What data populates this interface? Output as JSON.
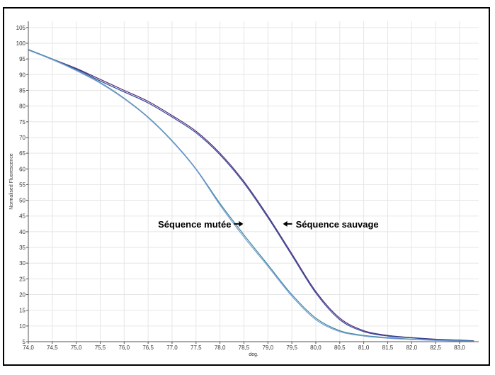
{
  "chart_data": {
    "type": "line",
    "title": "",
    "xlabel": "deg.",
    "ylabel": "Normalised Fluorescence",
    "xlim": [
      74.0,
      83.4
    ],
    "ylim": [
      5,
      107
    ],
    "xticks": [
      74.0,
      74.5,
      75.0,
      75.5,
      76.0,
      76.5,
      77.0,
      77.5,
      78.0,
      78.5,
      79.0,
      79.5,
      80.0,
      80.5,
      81.0,
      81.5,
      82.0,
      82.5,
      83.0
    ],
    "xtick_labels": [
      "74,0",
      "74,5",
      "75,0",
      "75,5",
      "76,0",
      "76,5",
      "77,0",
      "77,5",
      "78,0",
      "78,5",
      "79,0",
      "79,5",
      "80,0",
      "80,5",
      "81,0",
      "81,5",
      "82,0",
      "82,5",
      "83,0"
    ],
    "yticks": [
      5,
      10,
      15,
      20,
      25,
      30,
      35,
      40,
      45,
      50,
      55,
      60,
      65,
      70,
      75,
      80,
      85,
      90,
      95,
      100,
      105
    ],
    "ytick_labels": [
      "5",
      "10",
      "15",
      "20",
      "25",
      "30",
      "35",
      "40",
      "45",
      "50",
      "55",
      "60",
      "65",
      "70",
      "75",
      "80",
      "85",
      "90",
      "95",
      "100",
      "105"
    ],
    "grid": true,
    "series": [
      {
        "color": "#5a2a7a",
        "x": [
          74.0,
          74.5,
          75.0,
          75.5,
          76.0,
          76.5,
          77.0,
          77.5,
          78.0,
          78.5,
          79.0,
          79.5,
          80.0,
          80.5,
          81.0,
          81.5,
          82.0,
          82.5,
          83.0,
          83.3
        ],
        "values": [
          98,
          95,
          92,
          88.5,
          85,
          81.5,
          77,
          72,
          65,
          56,
          45,
          33,
          21,
          12.5,
          8.5,
          7,
          6.3,
          5.8,
          5.5,
          5.3
        ]
      },
      {
        "color": "#2a4a9a",
        "x": [
          74.0,
          74.5,
          75.0,
          75.5,
          76.0,
          76.5,
          77.0,
          77.5,
          78.0,
          78.5,
          79.0,
          79.5,
          80.0,
          80.5,
          81.0,
          81.5,
          82.0,
          82.5,
          83.0,
          83.3
        ],
        "values": [
          98,
          94.8,
          91.8,
          88,
          84.5,
          81,
          76.5,
          71.5,
          64.5,
          55.5,
          44.5,
          32.5,
          20.5,
          12,
          8.2,
          6.8,
          6.2,
          5.7,
          5.4,
          5.2
        ]
      },
      {
        "color": "#3a8a9a",
        "x": [
          74.0,
          74.5,
          75.0,
          75.5,
          76.0,
          76.5,
          77.0,
          77.5,
          78.0,
          78.5,
          79.0,
          79.5,
          80.0,
          80.5,
          81.0,
          81.5,
          82.0,
          82.5,
          83.0,
          83.3
        ],
        "values": [
          98,
          95,
          91.5,
          87.5,
          82.5,
          76.5,
          69,
          60,
          49,
          39,
          29.5,
          20,
          12.5,
          8.5,
          7,
          6.3,
          5.8,
          5.5,
          5.3,
          5.2
        ]
      },
      {
        "color": "#7a9ad8",
        "x": [
          74.0,
          74.5,
          75.0,
          75.5,
          76.0,
          76.5,
          77.0,
          77.5,
          78.0,
          78.5,
          79.0,
          79.5,
          80.0,
          80.5,
          81.0,
          81.5,
          82.0,
          82.5,
          83.0,
          83.3
        ],
        "values": [
          97.8,
          94.8,
          91.3,
          87.3,
          82.3,
          76.3,
          68.8,
          59.8,
          48.5,
          38.3,
          29,
          19.5,
          12,
          8.2,
          6.8,
          6.1,
          5.7,
          5.4,
          5.2,
          5.1
        ]
      }
    ],
    "annotations": [
      {
        "text": "Séquence mutée",
        "x": 78.5,
        "y": 42.5,
        "arrow": "right"
      },
      {
        "text": "Séquence sauvage",
        "x": 79.3,
        "y": 42.5,
        "arrow": "left"
      }
    ]
  }
}
